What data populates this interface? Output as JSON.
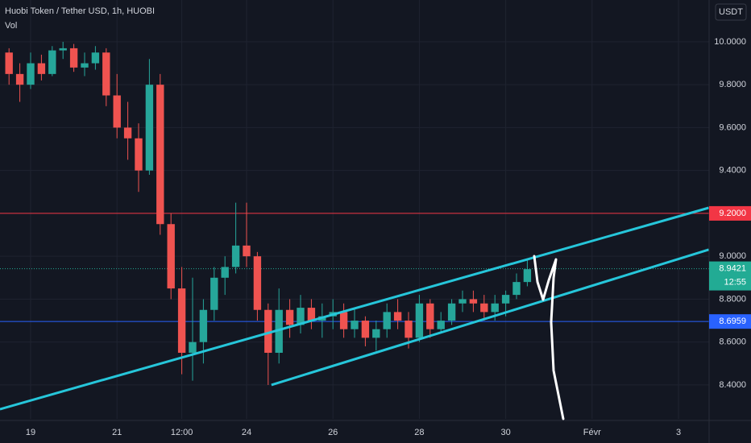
{
  "chart_data": {
    "type": "candlestick",
    "title": "Huobi Token / Tether USD, 1h, HUOBI",
    "indicator": "Vol",
    "currency": "USDT",
    "categories": [
      null,
      null,
      "19",
      null,
      null,
      null,
      null,
      null,
      null,
      null,
      "21",
      null,
      null,
      null,
      null,
      null,
      "12:00",
      null,
      null,
      null,
      null,
      null,
      "24",
      null,
      null,
      null,
      null,
      null,
      null,
      null,
      "26",
      null,
      null,
      null,
      null,
      null,
      null,
      null,
      "28",
      null,
      null,
      null,
      null,
      null,
      null,
      null,
      "30",
      null,
      null,
      null,
      null,
      null,
      null,
      null,
      "Févr",
      null,
      null,
      null,
      null,
      null,
      null,
      null,
      "3",
      null,
      null
    ],
    "open": [
      9.95,
      9.85,
      9.8,
      9.9,
      9.85,
      9.96,
      9.97,
      9.88,
      9.9,
      9.95,
      9.75,
      9.6,
      9.55,
      9.4,
      9.8,
      9.15,
      8.85,
      8.55,
      8.6,
      8.75,
      8.9,
      8.95,
      9.05,
      9.0,
      8.75,
      8.55,
      8.75,
      8.68,
      8.76,
      8.7,
      8.72,
      8.74,
      8.66,
      8.7,
      8.62,
      8.66,
      8.74,
      8.7,
      8.62,
      8.78,
      8.66,
      8.7,
      8.78,
      8.8,
      8.78,
      8.74,
      8.78,
      8.82,
      8.88,
      null,
      null,
      null,
      null,
      null,
      null,
      null,
      null,
      null,
      null,
      null,
      null,
      null,
      null,
      null,
      null
    ],
    "high": [
      9.97,
      9.9,
      9.95,
      9.94,
      9.98,
      10.0,
      9.99,
      9.95,
      9.98,
      9.97,
      9.85,
      9.72,
      9.62,
      9.92,
      9.85,
      9.2,
      8.95,
      8.9,
      8.8,
      8.95,
      9.0,
      9.25,
      9.25,
      9.02,
      8.78,
      8.85,
      8.8,
      8.82,
      8.8,
      8.78,
      8.8,
      8.78,
      8.76,
      8.72,
      8.7,
      8.78,
      8.8,
      8.74,
      8.82,
      8.8,
      8.74,
      8.8,
      8.84,
      8.84,
      8.82,
      8.82,
      8.84,
      8.92,
      8.98,
      null,
      null,
      null,
      null,
      null,
      null,
      null,
      null,
      null,
      null,
      null,
      null,
      null,
      null,
      null,
      null
    ],
    "low": [
      9.8,
      9.72,
      9.78,
      9.82,
      9.84,
      9.92,
      9.86,
      9.84,
      9.87,
      9.7,
      9.55,
      9.45,
      9.3,
      9.38,
      9.1,
      8.8,
      8.45,
      8.42,
      8.5,
      8.7,
      8.82,
      8.92,
      8.95,
      8.7,
      8.4,
      8.5,
      8.62,
      8.64,
      8.66,
      8.62,
      8.66,
      8.62,
      8.62,
      8.58,
      8.56,
      8.62,
      8.66,
      8.57,
      8.6,
      8.62,
      8.64,
      8.68,
      8.74,
      8.74,
      8.7,
      8.7,
      8.72,
      8.8,
      8.86,
      null,
      null,
      null,
      null,
      null,
      null,
      null,
      null,
      null,
      null,
      null,
      null,
      null,
      null,
      null,
      null
    ],
    "close": [
      9.85,
      9.8,
      9.9,
      9.85,
      9.96,
      9.97,
      9.88,
      9.9,
      9.95,
      9.75,
      9.6,
      9.55,
      9.4,
      9.8,
      9.15,
      8.85,
      8.55,
      8.6,
      8.75,
      8.9,
      8.95,
      9.05,
      9.0,
      8.75,
      8.55,
      8.75,
      8.68,
      8.76,
      8.7,
      8.72,
      8.74,
      8.66,
      8.7,
      8.62,
      8.66,
      8.74,
      8.7,
      8.62,
      8.78,
      8.66,
      8.7,
      8.78,
      8.8,
      8.78,
      8.74,
      8.78,
      8.82,
      8.88,
      8.94,
      null,
      null,
      null,
      null,
      null,
      null,
      null,
      null,
      null,
      null,
      null,
      null,
      null,
      null,
      null,
      null
    ],
    "up_color": "#26a69a",
    "down_color": "#ef5350",
    "ylim": [
      8.242,
      10.195
    ],
    "yticks": [
      {
        "value": 8.4,
        "label": "8.4000"
      },
      {
        "value": 8.6,
        "label": "8.6000"
      },
      {
        "value": 8.8,
        "label": "8.8000"
      },
      {
        "value": 9.0,
        "label": "9.0000"
      },
      {
        "value": 9.2,
        "label": "9.2000"
      },
      {
        "value": 9.4,
        "label": "9.4000"
      },
      {
        "value": 9.6,
        "label": "9.6000"
      },
      {
        "value": 9.8,
        "label": "9.8000"
      },
      {
        "value": 10.0,
        "label": "10.0000"
      }
    ],
    "grid": true,
    "levels": [
      {
        "value": 9.2,
        "label": "9.2000",
        "color": "#f23645"
      },
      {
        "value": 8.6959,
        "color": "#2962ff"
      }
    ],
    "last_price": {
      "value": 8.9421,
      "countdown": "12:55",
      "color": "#22ab94"
    },
    "trend_lines": [
      {
        "start": [
          -0.84,
          8.287
        ],
        "end": [
          64.8,
          9.226
        ],
        "color": "#26c6da"
      },
      {
        "start": [
          24.3,
          8.4
        ],
        "end": [
          64.8,
          9.031
        ],
        "color": "#26c6da"
      }
    ]
  }
}
